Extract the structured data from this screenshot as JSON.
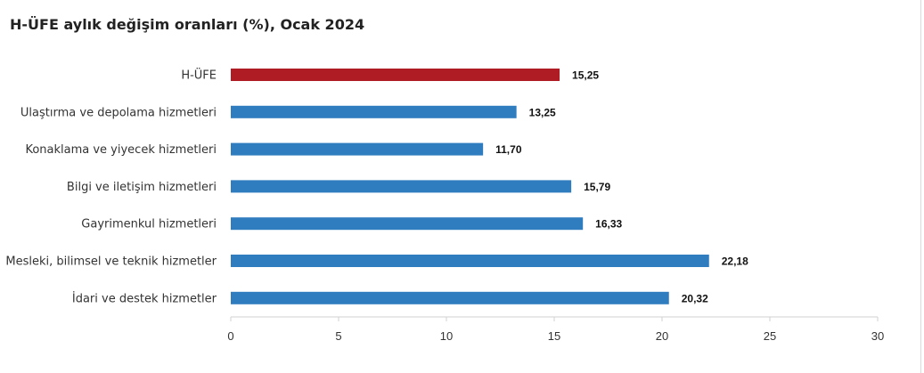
{
  "chart_data": {
    "type": "bar",
    "orientation": "horizontal",
    "title": "H-ÜFE aylık değişim oranları (%), Ocak 2024",
    "categories": [
      "H-ÜFE",
      "Ulaştırma ve depolama hizmetleri",
      "Konaklama ve yiyecek hizmetleri",
      "Bilgi ve iletişim hizmetleri",
      "Gayrimenkul hizmetleri",
      "Mesleki, bilimsel ve teknik hizmetler",
      "İdari ve destek hizmetler"
    ],
    "values": [
      15.25,
      13.25,
      11.7,
      15.79,
      16.33,
      22.18,
      20.32
    ],
    "value_labels": [
      "15,25",
      "13,25",
      "11,70",
      "15,79",
      "16,33",
      "22,18",
      "20,32"
    ],
    "xlim": [
      0,
      30
    ],
    "xticks": [
      0,
      5,
      10,
      15,
      20,
      25,
      30
    ],
    "grid": false,
    "legend": "none",
    "colors": {
      "highlight": "#b01c24",
      "default": "#2f7dbf",
      "axis": "#d0d0d0"
    },
    "highlight_index": 0
  }
}
